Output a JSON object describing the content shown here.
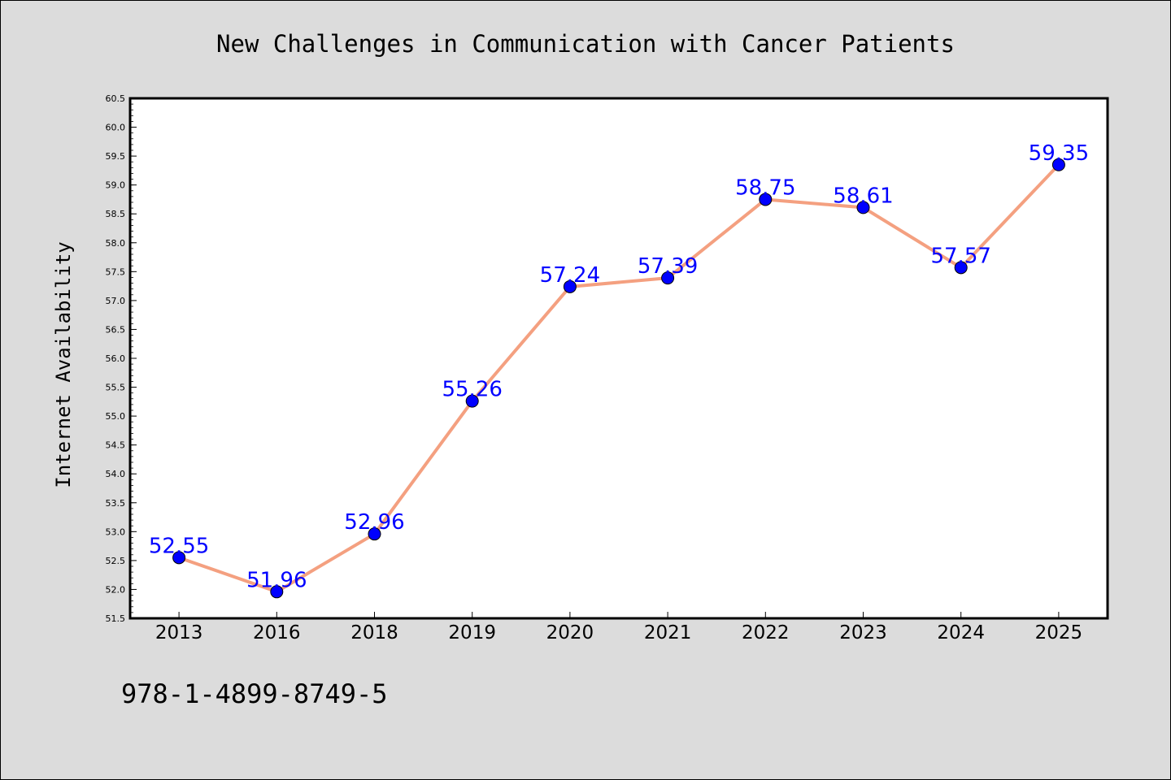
{
  "chart_data": {
    "type": "line",
    "title": "New Challenges in Communication with Cancer Patients",
    "xlabel": "",
    "ylabel": "Internet Availability",
    "categories": [
      "2013",
      "2016",
      "2018",
      "2019",
      "2020",
      "2021",
      "2022",
      "2023",
      "2024",
      "2025"
    ],
    "series": [
      {
        "values": [
          52.55,
          51.96,
          52.96,
          55.26,
          57.24,
          57.39,
          58.75,
          58.61,
          57.57,
          59.35
        ],
        "line_color": "#f4a080",
        "marker_color": "#0000ff"
      }
    ],
    "data_labels": [
      "52.55",
      "51.96",
      "52.96",
      "55.26",
      "57.24",
      "57.39",
      "58.75",
      "58.61",
      "57.57",
      "59.35"
    ],
    "ylim": [
      51.5,
      60.5
    ],
    "yticks": [
      "51.5",
      "52.0",
      "52.5",
      "53.0",
      "53.5",
      "54.0",
      "54.5",
      "55.0",
      "55.5",
      "56.0",
      "56.5",
      "57.0",
      "57.5",
      "58.0",
      "58.5",
      "59.0",
      "59.5",
      "60.0",
      "60.5"
    ],
    "grid": false,
    "legend": "none"
  },
  "footer_text": "978-1-4899-8749-5",
  "colors": {
    "figure_background": "#dcdcdc",
    "plot_background": "#ffffff",
    "line": "#f4a080",
    "marker": "#0000ff",
    "data_label": "#0000ff"
  }
}
